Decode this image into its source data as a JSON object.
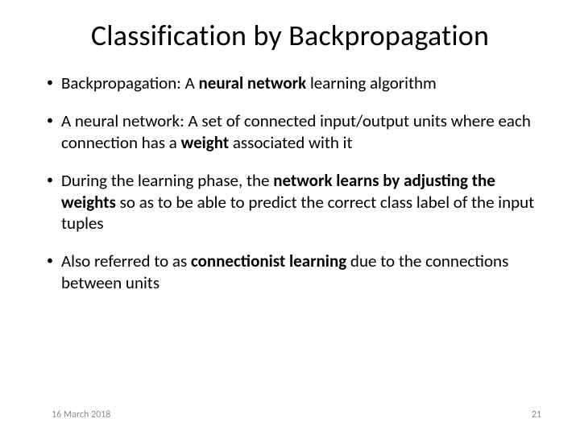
{
  "slide": {
    "title": "Classification by Backpropagation",
    "title_fontsize": 36,
    "body_fontsize": 21,
    "background_color": "#ffffff",
    "text_color": "#000000",
    "footer_color": "#8d8d8d",
    "bullets": [
      {
        "parts": [
          {
            "text": "Backpropagation: A ",
            "bold": false
          },
          {
            "text": "neural network",
            "bold": true
          },
          {
            "text": " learning algorithm",
            "bold": false
          }
        ]
      },
      {
        "parts": [
          {
            "text": "A neural network: A set of connected input/output units where each connection has a ",
            "bold": false
          },
          {
            "text": "weight",
            "bold": true
          },
          {
            "text": " associated with it",
            "bold": false
          }
        ]
      },
      {
        "parts": [
          {
            "text": "During the learning phase, the ",
            "bold": false
          },
          {
            "text": "network learns by adjusting the weights",
            "bold": true
          },
          {
            "text": " so as to be able to predict the correct class label of the input tuples",
            "bold": false
          }
        ]
      },
      {
        "parts": [
          {
            "text": "Also referred to as ",
            "bold": false
          },
          {
            "text": "connectionist learning",
            "bold": true
          },
          {
            "text": " due to the connections between units",
            "bold": false
          }
        ]
      }
    ],
    "footer": {
      "date": "16 March 2018",
      "page": "21"
    }
  }
}
